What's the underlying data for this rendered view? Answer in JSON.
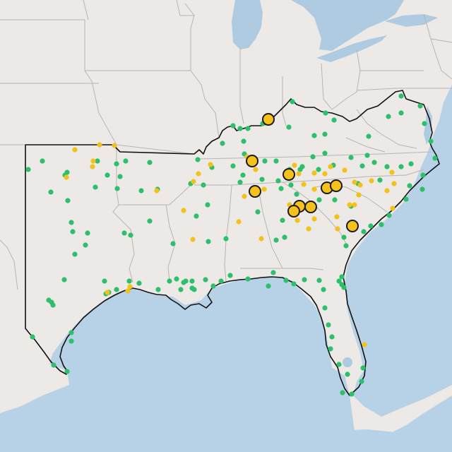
{
  "map": {
    "colors": {
      "land": "#ede9e6",
      "water": "#b7d2e6",
      "lake": "#aecbe2",
      "state_border": "#b8b4b1",
      "region_outline": "#111111",
      "green_marker": "#2cc06a",
      "yellow_marker": "#f2c21c",
      "large_marker_fill": "#f5c21b",
      "large_marker_stroke": "#1a1a1a"
    },
    "layers": [
      {
        "name": "land-layer"
      },
      {
        "name": "water-layer"
      },
      {
        "name": "state-borders-layer"
      },
      {
        "name": "region-outline-layer"
      },
      {
        "name": "small-green-markers"
      },
      {
        "name": "small-yellow-markers"
      },
      {
        "name": "large-yellow-markers"
      }
    ],
    "marker_categories": [
      "green",
      "yellow",
      "large-yellow"
    ]
  }
}
